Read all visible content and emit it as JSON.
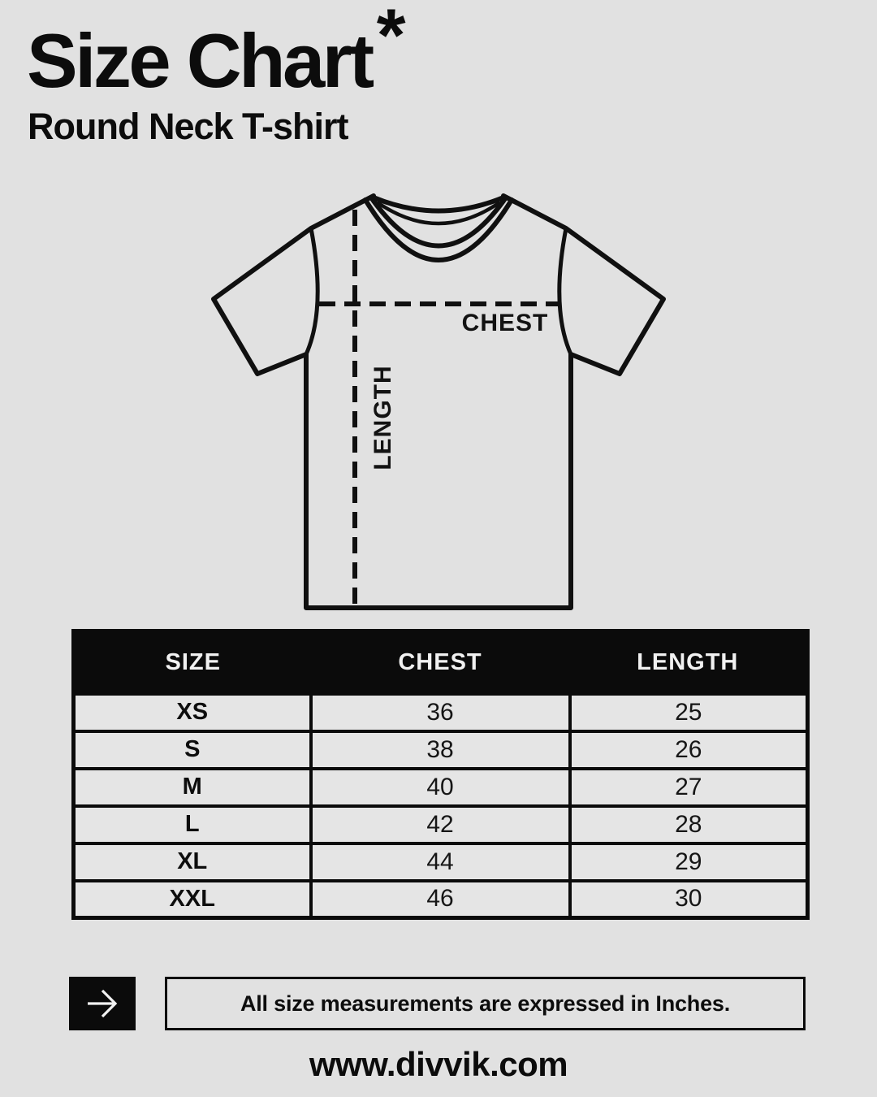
{
  "page": {
    "background": "#e1e1e1",
    "ink": "#0b0b0b",
    "header_text_color": "#f1f1f1",
    "row_fill": "#e5e5e5"
  },
  "header": {
    "title": "Size Chart",
    "asterisk": "*",
    "subtitle": "Round Neck T-shirt"
  },
  "diagram": {
    "type": "tshirt-measurement-diagram",
    "chest_label": "CHEST",
    "length_label": "LENGTH"
  },
  "table": {
    "headers": [
      "SIZE",
      "CHEST",
      "LENGTH"
    ],
    "rows": [
      {
        "size": "XS",
        "chest": "36",
        "length": "25"
      },
      {
        "size": "S",
        "chest": "38",
        "length": "26"
      },
      {
        "size": "M",
        "chest": "40",
        "length": "27"
      },
      {
        "size": "L",
        "chest": "42",
        "length": "28"
      },
      {
        "size": "XL",
        "chest": "44",
        "length": "29"
      },
      {
        "size": "XXL",
        "chest": "46",
        "length": "30"
      }
    ]
  },
  "footer": {
    "arrow_icon": "right-arrow",
    "note": "All size measurements are expressed in Inches.",
    "website": "www.divvik.com"
  }
}
